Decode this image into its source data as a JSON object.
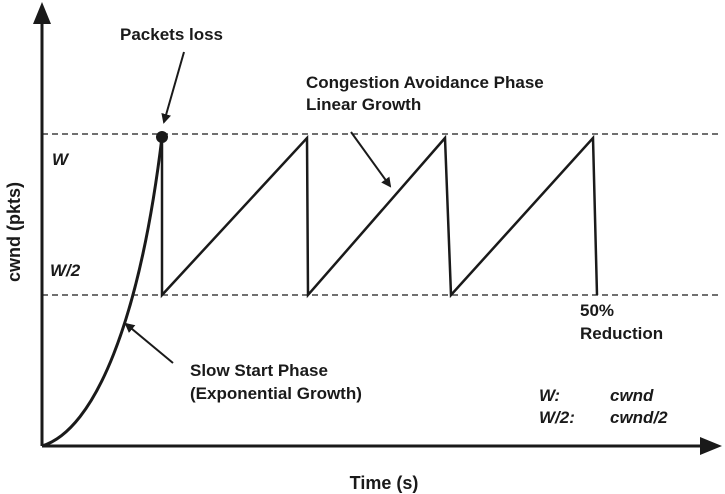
{
  "axes": {
    "y_label": "cwnd (pkts)",
    "x_label": "Time (s)"
  },
  "levels": {
    "w": "W",
    "w_half": "W/2"
  },
  "annotations": {
    "packets_loss": "Packets loss",
    "congestion_line1": "Congestion Avoidance Phase",
    "congestion_line2": "Linear Growth",
    "slow_start_line1": "Slow Start Phase",
    "slow_start_line2": "(Exponential Growth)",
    "reduction_line1": "50%",
    "reduction_line2": "Reduction"
  },
  "legend": [
    {
      "key": "W:",
      "value": "cwnd"
    },
    {
      "key": "W/2:",
      "value": "cwnd/2"
    }
  ]
}
